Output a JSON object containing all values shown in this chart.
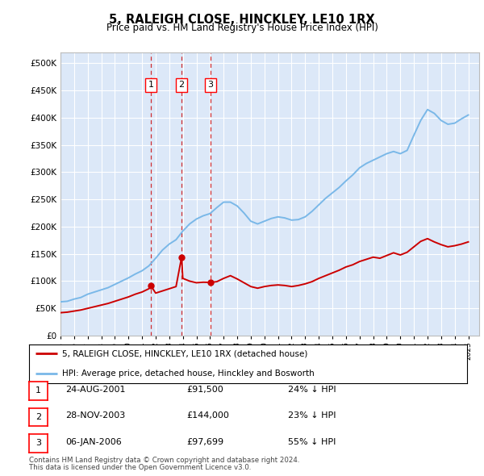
{
  "title": "5, RALEIGH CLOSE, HINCKLEY, LE10 1RX",
  "subtitle": "Price paid vs. HM Land Registry's House Price Index (HPI)",
  "plot_bg": "#dce8f8",
  "ylim": [
    0,
    520000
  ],
  "yticks": [
    0,
    50000,
    100000,
    150000,
    200000,
    250000,
    300000,
    350000,
    400000,
    450000,
    500000
  ],
  "xlim_start": 1995.0,
  "xlim_end": 2025.8,
  "transactions": [
    {
      "num": 1,
      "date": "24-AUG-2001",
      "year": 2001.65,
      "price": 91500,
      "hpi_diff": "24% ↓ HPI"
    },
    {
      "num": 2,
      "date": "28-NOV-2003",
      "year": 2003.91,
      "price": 144000,
      "hpi_diff": "23% ↓ HPI"
    },
    {
      "num": 3,
      "date": "06-JAN-2006",
      "year": 2006.03,
      "price": 97699,
      "hpi_diff": "55% ↓ HPI"
    }
  ],
  "legend_label_red": "5, RALEIGH CLOSE, HINCKLEY, LE10 1RX (detached house)",
  "legend_label_blue": "HPI: Average price, detached house, Hinckley and Bosworth",
  "footer_line1": "Contains HM Land Registry data © Crown copyright and database right 2024.",
  "footer_line2": "This data is licensed under the Open Government Licence v3.0.",
  "hpi_color": "#7ab8e8",
  "price_color": "#cc0000",
  "vline_color": "#cc0000",
  "hpi_years": [
    1995.0,
    1995.5,
    1996.0,
    1996.5,
    1997.0,
    1997.5,
    1998.0,
    1998.5,
    1999.0,
    1999.5,
    2000.0,
    2000.5,
    2001.0,
    2001.5,
    2002.0,
    2002.5,
    2003.0,
    2003.5,
    2004.0,
    2004.5,
    2005.0,
    2005.5,
    2006.0,
    2006.5,
    2007.0,
    2007.5,
    2008.0,
    2008.5,
    2009.0,
    2009.5,
    2010.0,
    2010.5,
    2011.0,
    2011.5,
    2012.0,
    2012.5,
    2013.0,
    2013.5,
    2014.0,
    2014.5,
    2015.0,
    2015.5,
    2016.0,
    2016.5,
    2017.0,
    2017.5,
    2018.0,
    2018.5,
    2019.0,
    2019.5,
    2020.0,
    2020.5,
    2021.0,
    2021.5,
    2022.0,
    2022.5,
    2023.0,
    2023.5,
    2024.0,
    2024.5,
    2025.0
  ],
  "hpi_values": [
    62000,
    63000,
    67000,
    70000,
    76000,
    80000,
    84000,
    88000,
    94000,
    100000,
    106000,
    113000,
    119000,
    128000,
    142000,
    157000,
    168000,
    176000,
    192000,
    205000,
    214000,
    220000,
    224000,
    235000,
    245000,
    245000,
    238000,
    225000,
    210000,
    205000,
    210000,
    215000,
    218000,
    216000,
    212000,
    213000,
    218000,
    228000,
    240000,
    252000,
    262000,
    272000,
    284000,
    295000,
    308000,
    316000,
    322000,
    328000,
    334000,
    338000,
    334000,
    340000,
    368000,
    395000,
    415000,
    408000,
    395000,
    388000,
    390000,
    398000,
    405000
  ],
  "price_years": [
    1995.0,
    1995.5,
    1996.0,
    1996.5,
    1997.0,
    1997.5,
    1998.0,
    1998.5,
    1999.0,
    1999.5,
    2000.0,
    2000.5,
    2001.0,
    2001.5,
    2001.65,
    2002.0,
    2002.5,
    2003.0,
    2003.5,
    2003.91,
    2004.0,
    2004.5,
    2005.0,
    2005.5,
    2006.0,
    2006.03,
    2006.5,
    2007.0,
    2007.5,
    2008.0,
    2008.5,
    2009.0,
    2009.5,
    2010.0,
    2010.5,
    2011.0,
    2011.5,
    2012.0,
    2012.5,
    2013.0,
    2013.5,
    2014.0,
    2014.5,
    2015.0,
    2015.5,
    2016.0,
    2016.5,
    2017.0,
    2017.5,
    2018.0,
    2018.5,
    2019.0,
    2019.5,
    2020.0,
    2020.5,
    2021.0,
    2021.5,
    2022.0,
    2022.5,
    2023.0,
    2023.5,
    2024.0,
    2024.5,
    2025.0
  ],
  "price_values": [
    42000,
    43000,
    45000,
    47000,
    50000,
    53000,
    56000,
    59000,
    63000,
    67000,
    71000,
    76000,
    80000,
    86000,
    91500,
    78000,
    82000,
    86000,
    90000,
    144000,
    105000,
    100000,
    97000,
    98000,
    97699,
    97699,
    99000,
    105000,
    110000,
    104000,
    97000,
    90000,
    87000,
    90000,
    92000,
    93000,
    92000,
    90000,
    92000,
    95000,
    99000,
    105000,
    110000,
    115000,
    120000,
    126000,
    130000,
    136000,
    140000,
    144000,
    142000,
    147000,
    152000,
    148000,
    153000,
    163000,
    173000,
    178000,
    172000,
    167000,
    163000,
    165000,
    168000,
    172000
  ]
}
